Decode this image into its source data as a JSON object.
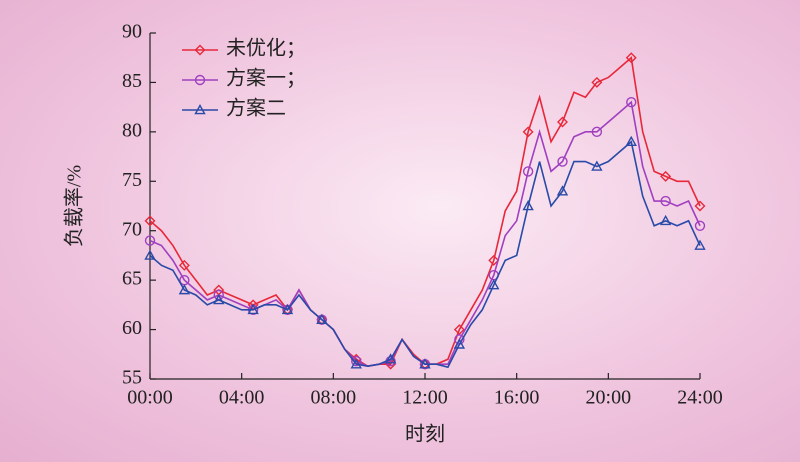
{
  "chart_data": {
    "type": "line",
    "ylabel": "负载率/%",
    "xlabel": "时刻",
    "x": [
      0,
      0.5,
      1,
      1.5,
      2,
      2.5,
      3,
      3.5,
      4,
      4.5,
      5,
      5.5,
      6,
      6.5,
      7,
      7.5,
      8,
      8.5,
      9,
      9.5,
      10,
      10.5,
      11,
      11.5,
      12,
      12.5,
      13,
      13.5,
      14,
      14.5,
      15,
      15.5,
      16,
      16.5,
      17,
      17.5,
      18,
      18.5,
      19,
      19.5,
      20,
      20.5,
      21,
      21.5,
      22,
      22.5,
      23,
      23.5,
      24
    ],
    "series": [
      {
        "name": "未优化；",
        "color": "#e8283a",
        "marker": "diamond",
        "values": [
          71,
          70,
          68.5,
          66.5,
          65,
          63.5,
          64,
          63.5,
          63,
          62.5,
          63,
          63.5,
          62,
          64,
          62,
          61,
          60,
          58,
          57,
          56.3,
          56.5,
          56.5,
          59,
          57.5,
          56.5,
          56.5,
          57,
          60,
          62,
          64,
          67,
          72,
          74,
          80,
          83.5,
          79,
          81,
          84,
          83.5,
          85,
          85.5,
          86.5,
          87.5,
          80,
          76,
          75.5,
          75,
          75,
          72.5
        ]
      },
      {
        "name": "方案一；",
        "color": "#a040c0",
        "marker": "circle",
        "values": [
          69,
          68.5,
          67,
          65,
          64,
          63,
          63.5,
          63,
          62.5,
          62,
          62.5,
          63,
          62,
          64,
          62,
          61,
          60,
          58,
          56.8,
          56.3,
          56.5,
          56.8,
          59,
          57.3,
          56.5,
          56.5,
          56.5,
          59,
          61,
          63,
          65.5,
          69.5,
          71,
          76,
          80,
          76,
          77,
          79.5,
          80,
          80,
          81,
          82,
          83,
          76.5,
          73,
          73,
          72.5,
          73,
          70.5
        ]
      },
      {
        "name": "方案二",
        "color": "#2a4aa8",
        "marker": "triangle",
        "values": [
          67.5,
          66.5,
          66,
          64,
          63.5,
          62.5,
          63,
          62.5,
          62,
          62,
          62.5,
          62.5,
          62,
          63.5,
          62,
          61,
          60,
          58,
          56.5,
          56.3,
          56.5,
          57,
          59,
          57.3,
          56.5,
          56.5,
          56.2,
          58.5,
          60.5,
          62,
          64.5,
          67,
          67.5,
          72.5,
          77,
          72.5,
          74,
          77,
          77,
          76.5,
          77,
          78,
          79,
          73.5,
          70.5,
          71,
          70.5,
          71,
          68.5
        ]
      }
    ],
    "xlim": [
      0,
      24
    ],
    "xticks": [
      {
        "value": 0,
        "label": "00:00"
      },
      {
        "value": 4,
        "label": "04:00"
      },
      {
        "value": 8,
        "label": "08:00"
      },
      {
        "value": 12,
        "label": "12:00"
      },
      {
        "value": 16,
        "label": "16:00"
      },
      {
        "value": 20,
        "label": "20:00"
      },
      {
        "value": 24,
        "label": "24:00"
      }
    ],
    "ylim": [
      55,
      90
    ],
    "yticks": [
      55,
      60,
      65,
      70,
      75,
      80,
      85,
      90
    ],
    "grid": false,
    "legend": "upper left"
  }
}
